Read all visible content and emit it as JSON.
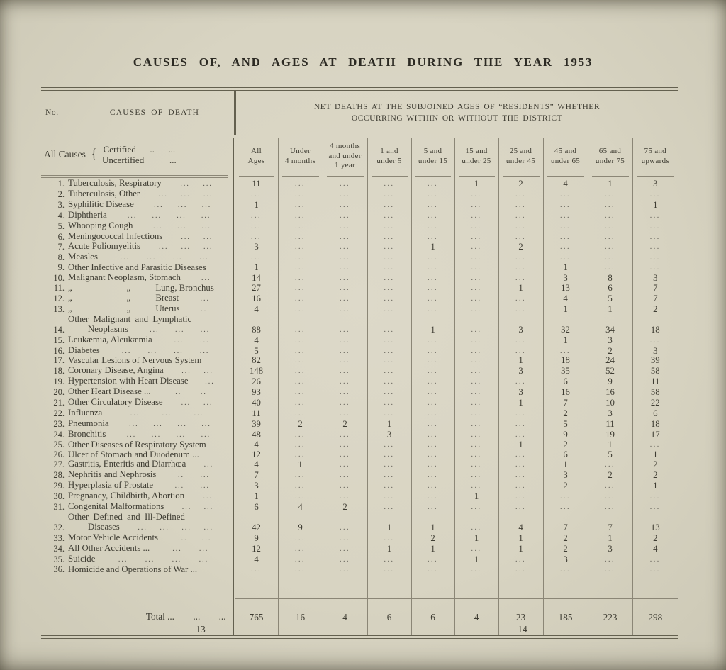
{
  "page": {
    "title": "CAUSES  OF,  AND  AGES  AT  DEATH  DURING  THE  YEAR  1953",
    "page_number_left": "13",
    "page_number_right": "14"
  },
  "table": {
    "no_header": "No.",
    "causes_header": "CAUSES OF DEATH",
    "right_header_line1": "NET DEATHS AT THE SUBJOINED AGES OF “RESIDENTS” WHETHER",
    "right_header_line2": "OCCURRING WITHIN OR WITHOUT THE DISTRICT",
    "all_causes_label": "All Causes",
    "brace": "{",
    "certified_line": "Certified      ..      ...",
    "uncertified_line": "Uncertified           ...",
    "columns": [
      "All\nAges",
      "Under\n4 months",
      "4 months\nand under\n1 year",
      "1 and\nunder 5",
      "5 and\nunder 15",
      "15 and\nunder 25",
      "25 and\nunder 45",
      "45 and\nunder 65",
      "65 and\nunder 75",
      "75 and\nupwards"
    ],
    "rows": [
      {
        "no": "1.",
        "cause": "Tuberculosis, Respiratory",
        "leaders": "... ...",
        "cells": [
          "11",
          "...",
          "...",
          "...",
          "...",
          "1",
          "2",
          "4",
          "1",
          "3"
        ]
      },
      {
        "no": "2.",
        "cause": "Tuberculosis, Other",
        "leaders": "... ... ...",
        "cells": [
          "...",
          "...",
          "...",
          "...",
          "...",
          "...",
          "...",
          "...",
          "...",
          "..."
        ]
      },
      {
        "no": "3.",
        "cause": "Syphilitic Disease",
        "leaders": "... ... ...",
        "cells": [
          "1",
          "...",
          "...",
          "...",
          "...",
          "...",
          "...",
          "...",
          "...",
          "1"
        ]
      },
      {
        "no": "4.",
        "cause": "Diphtheria",
        "leaders": "... ... ... ...",
        "cells": [
          "...",
          "...",
          "...",
          "...",
          "...",
          "...",
          "...",
          "...",
          "...",
          "..."
        ]
      },
      {
        "no": "5.",
        "cause": "Whooping Cough",
        "leaders": "... ... ...",
        "cells": [
          "...",
          "...",
          "...",
          "...",
          "...",
          "...",
          "...",
          "...",
          "...",
          "..."
        ]
      },
      {
        "no": "6.",
        "cause": "Meningococcal Infections",
        "leaders": "... ...",
        "cells": [
          "...",
          "...",
          "...",
          "...",
          "...",
          "...",
          "...",
          "...",
          "...",
          "..."
        ]
      },
      {
        "no": "7.",
        "cause": "Acute Poliomyelitis",
        "leaders": "... ... ...",
        "cells": [
          "3",
          "...",
          "...",
          "...",
          "1",
          "...",
          "2",
          "...",
          "...",
          "..."
        ]
      },
      {
        "no": "8.",
        "cause": "Measles",
        "leaders": "... ... ... ...",
        "cells": [
          "...",
          "...",
          "...",
          "...",
          "...",
          "...",
          "...",
          "...",
          "...",
          "..."
        ]
      },
      {
        "no": "9.",
        "cause": "Other Infective and Parasitic Diseases",
        "leaders": "",
        "cells": [
          "1",
          "...",
          "...",
          "...",
          "...",
          "...",
          "...",
          "1",
          "...",
          "..."
        ]
      },
      {
        "no": "10.",
        "cause": "Malignant Neoplasm, Stomach",
        "leaders": "...",
        "cells": [
          "14",
          "...",
          "...",
          "...",
          "...",
          "...",
          "...",
          "3",
          "8",
          "3"
        ]
      },
      {
        "no": "11.",
        "cause": "„                        „           Lung, Bronchus",
        "leaders": "",
        "cells": [
          "27",
          "...",
          "...",
          "...",
          "...",
          "...",
          "1",
          "13",
          "6",
          "7"
        ]
      },
      {
        "no": "12.",
        "cause": "„                        „           Breast",
        "leaders": "...",
        "cells": [
          "16",
          "...",
          "...",
          "...",
          "...",
          "...",
          "...",
          "4",
          "5",
          "7"
        ]
      },
      {
        "no": "13.",
        "cause": "„                        „           Uterus",
        "leaders": "...",
        "cells": [
          "4",
          "...",
          "...",
          "...",
          "...",
          "...",
          "...",
          "1",
          "1",
          "2"
        ]
      },
      {
        "no": "14.",
        "cause": "Other  Malignant  and  Lymphatic",
        "cause2": "Neoplasms",
        "leaders": "... ... ...",
        "cells": [
          "88",
          "...",
          "...",
          "...",
          "1",
          "...",
          "3",
          "32",
          "34",
          "18"
        ]
      },
      {
        "no": "15.",
        "cause": "Leukæmia, Aleukæmia",
        "leaders": "... ...",
        "cells": [
          "4",
          "...",
          "...",
          "...",
          "...",
          "...",
          "...",
          "1",
          "3",
          "..."
        ]
      },
      {
        "no": "16.",
        "cause": "Diabetes",
        "leaders": "... ... ... ...",
        "cells": [
          "5",
          "...",
          "...",
          "...",
          "...",
          "...",
          "...",
          "...",
          "2",
          "3"
        ]
      },
      {
        "no": "17.",
        "cause": "Vascular Lesions of Nervous System",
        "leaders": "",
        "cells": [
          "82",
          "...",
          "...",
          "...",
          "...",
          "...",
          "1",
          "18",
          "24",
          "39"
        ]
      },
      {
        "no": "18.",
        "cause": "Coronary Disease, Angina",
        "leaders": "... ...",
        "cells": [
          "148",
          "...",
          "...",
          "...",
          "...",
          "...",
          "3",
          "35",
          "52",
          "58"
        ]
      },
      {
        "no": "19.",
        "cause": "Hypertension with Heart Disease",
        "leaders": "...",
        "cells": [
          "26",
          "...",
          "...",
          "...",
          "...",
          "...",
          "...",
          "6",
          "9",
          "11"
        ]
      },
      {
        "no": "20.",
        "cause": "Other Heart Disease ...",
        "leaders": ".. ..",
        "cells": [
          "93",
          "...",
          "...",
          "...",
          "...",
          "...",
          "3",
          "16",
          "16",
          "58"
        ]
      },
      {
        "no": "21.",
        "cause": "Other Circulatory Disease",
        "leaders": "... ...",
        "cells": [
          "40",
          "...",
          "...",
          "...",
          "...",
          "...",
          "1",
          "7",
          "10",
          "22"
        ]
      },
      {
        "no": "22.",
        "cause": "Influenza",
        "leaders": "... ... ...",
        "cells": [
          "11",
          "...",
          "...",
          "...",
          "...",
          "...",
          "...",
          "2",
          "3",
          "6"
        ]
      },
      {
        "no": "23.",
        "cause": "Pneumonia",
        "leaders": "... ... ... ...",
        "cells": [
          "39",
          "2",
          "2",
          "1",
          "...",
          "...",
          "...",
          "5",
          "11",
          "18"
        ]
      },
      {
        "no": "24.",
        "cause": "Bronchitis",
        "leaders": "... ... ... ...",
        "cells": [
          "48",
          "...",
          "...",
          "3",
          "...",
          "...",
          "...",
          "9",
          "19",
          "17"
        ]
      },
      {
        "no": "25.",
        "cause": "Other Diseases of Respiratory System",
        "leaders": "",
        "cells": [
          "4",
          "...",
          "...",
          "...",
          "...",
          "...",
          "1",
          "2",
          "1",
          "..."
        ]
      },
      {
        "no": "26.",
        "cause": "Ulcer of Stomach and Duodenum ...",
        "leaders": "",
        "cells": [
          "12",
          "...",
          "...",
          "...",
          "...",
          "...",
          "...",
          "6",
          "5",
          "1"
        ]
      },
      {
        "no": "27.",
        "cause": "Gastritis, Enteritis and Diarrhœa",
        "leaders": "...",
        "cells": [
          "4",
          "1",
          "...",
          "...",
          "...",
          "...",
          "...",
          "1",
          "...",
          "2"
        ]
      },
      {
        "no": "28.",
        "cause": "Nephritis and Nephrosis",
        "leaders": ".. ...",
        "cells": [
          "7",
          "...",
          "...",
          "...",
          "...",
          "...",
          "...",
          "3",
          "2",
          "2"
        ]
      },
      {
        "no": "29.",
        "cause": "Hyperplasia of Prostate",
        "leaders": "... ...",
        "cells": [
          "3",
          "...",
          "...",
          "...",
          "...",
          "...",
          "...",
          "2",
          "...",
          "1"
        ]
      },
      {
        "no": "30.",
        "cause": "Pregnancy, Childbirth, Abortion",
        "leaders": "...",
        "cells": [
          "1",
          "...",
          "...",
          "...",
          "...",
          "1",
          "...",
          "...",
          "...",
          "..."
        ]
      },
      {
        "no": "31.",
        "cause": "Congenital Malformations",
        "leaders": "... ...",
        "cells": [
          "6",
          "4",
          "2",
          "...",
          "...",
          "...",
          "...",
          "...",
          "...",
          "..."
        ]
      },
      {
        "no": "32.",
        "cause": "Other  Defined  and  Ill-Defined",
        "cause2": "Diseases",
        "leaders": "... ... ... ...",
        "cells": [
          "42",
          "9",
          "...",
          "1",
          "1",
          "...",
          "4",
          "7",
          "7",
          "13"
        ]
      },
      {
        "no": "33.",
        "cause": "Motor Vehicle Accidents",
        "leaders": "... ...",
        "cells": [
          "9",
          "...",
          "...",
          "...",
          "2",
          "1",
          "1",
          "2",
          "1",
          "2"
        ]
      },
      {
        "no": "34.",
        "cause": "All Other Accidents ...",
        "leaders": "... ...",
        "cells": [
          "12",
          "...",
          "...",
          "1",
          "1",
          "...",
          "1",
          "2",
          "3",
          "4"
        ]
      },
      {
        "no": "35.",
        "cause": "Suicide",
        "leaders": "... ... ... ...",
        "cells": [
          "4",
          "...",
          "...",
          "...",
          "...",
          "1",
          "...",
          "3",
          "...",
          "..."
        ]
      },
      {
        "no": "36.",
        "cause": "Homicide and Operations of War ...",
        "leaders": "",
        "cells": [
          "...",
          "...",
          "...",
          "...",
          "...",
          "...",
          "...",
          "...",
          "...",
          "..."
        ]
      }
    ],
    "total_label": "Total ...        ...        ...",
    "total_cells": [
      "765",
      "16",
      "4",
      "6",
      "6",
      "4",
      "23",
      "185",
      "223",
      "298"
    ]
  }
}
